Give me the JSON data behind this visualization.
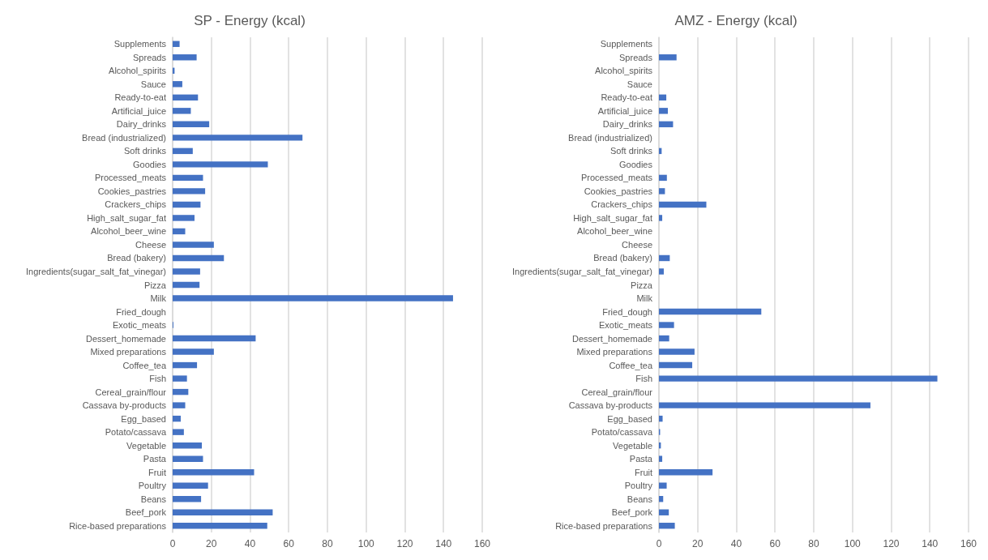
{
  "chart_data": [
    {
      "type": "bar",
      "orientation": "horizontal",
      "title": "SP - Energy (kcal)",
      "categories": [
        "Supplements",
        "Spreads",
        "Alcohol_spirits",
        "Sauce",
        "Ready-to-eat",
        "Artificial_juice",
        "Dairy_drinks",
        "Bread (industrialized)",
        "Soft drinks",
        "Goodies",
        "Processed_meats",
        "Cookies_pastries",
        "Crackers_chips",
        "High_salt_sugar_fat",
        "Alcohol_beer_wine",
        "Cheese",
        "Bread (bakery)",
        "Ingredients(sugar_salt_fat_vinegar)",
        "Pizza",
        "Milk",
        "Fried_dough",
        "Exotic_meats",
        "Dessert_homemade",
        "Mixed preparations",
        "Coffee_tea",
        "Fish",
        "Cereal_grain/flour",
        "Cassava by-products",
        "Egg_based",
        "Potato/cassava",
        "Vegetable",
        "Pasta",
        "Fruit",
        "Poultry",
        "Beans",
        "Beef_pork",
        "Rice-based preparations"
      ],
      "values": [
        3.6,
        12.4,
        1.0,
        5.0,
        13.1,
        9.4,
        18.9,
        67.1,
        10.4,
        49.2,
        15.7,
        16.8,
        14.4,
        11.3,
        6.5,
        21.3,
        26.5,
        14.2,
        13.9,
        144.9,
        0,
        0.4,
        42.9,
        21.3,
        12.6,
        7.4,
        8.1,
        6.5,
        4.2,
        5.8,
        15.1,
        15.7,
        42.1,
        18.3,
        14.7,
        51.7,
        48.9
      ],
      "color": "#4472c4",
      "xlim": [
        0,
        160
      ],
      "xticks": [
        0,
        20,
        40,
        60,
        80,
        100,
        120,
        140,
        160
      ],
      "grid": "x"
    },
    {
      "type": "bar",
      "orientation": "horizontal",
      "title": "AMZ - Energy (kcal)",
      "categories": [
        "Supplements",
        "Spreads",
        "Alcohol_spirits",
        "Sauce",
        "Ready-to-eat",
        "Artificial_juice",
        "Dairy_drinks",
        "Bread (industrialized)",
        "Soft drinks",
        "Goodies",
        "Processed_meats",
        "Cookies_pastries",
        "Crackers_chips",
        "High_salt_sugar_fat",
        "Alcohol_beer_wine",
        "Cheese",
        "Bread (bakery)",
        "Ingredients(sugar_salt_fat_vinegar)",
        "Pizza",
        "Milk",
        "Fried_dough",
        "Exotic_meats",
        "Dessert_homemade",
        "Mixed preparations",
        "Coffee_tea",
        "Fish",
        "Cereal_grain/flour",
        "Cassava by-products",
        "Egg_based",
        "Potato/cassava",
        "Vegetable",
        "Pasta",
        "Fruit",
        "Poultry",
        "Beans",
        "Beef_pork",
        "Rice-based preparations"
      ],
      "values": [
        0,
        9.1,
        0,
        0,
        3.8,
        4.6,
        7.3,
        0,
        1.4,
        0,
        4.1,
        3.1,
        24.5,
        1.7,
        0,
        0,
        5.6,
        2.5,
        0,
        0,
        52.9,
        7.8,
        5.3,
        18.4,
        17.2,
        143.9,
        0,
        109.3,
        1.9,
        0.6,
        1.0,
        1.7,
        27.7,
        4.0,
        2.2,
        5.1,
        8.2
      ],
      "color": "#4472c4",
      "xlim": [
        0,
        160
      ],
      "xticks": [
        0,
        20,
        40,
        60,
        80,
        100,
        120,
        140,
        160
      ],
      "grid": "x"
    }
  ]
}
